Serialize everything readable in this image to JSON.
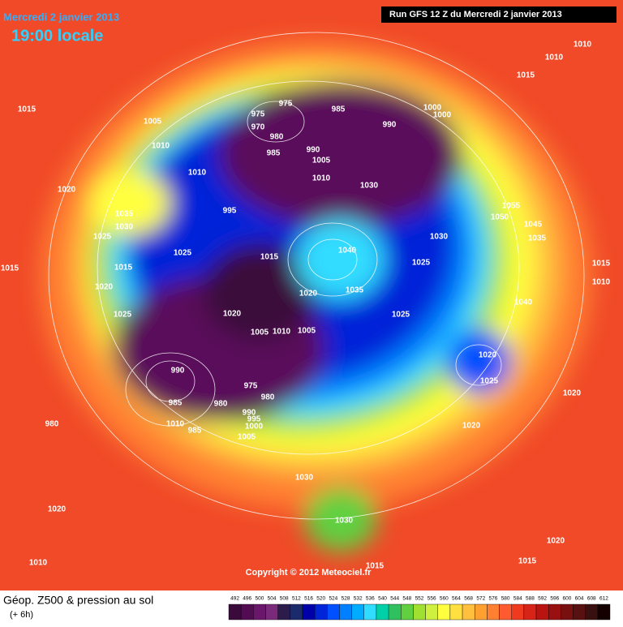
{
  "header": {
    "date": "Mercredi 2 janvier 2013",
    "time": "19:00 locale",
    "run": "Run GFS 12 Z du Mercredi 2 janvier 2013"
  },
  "footer": {
    "title": "Géop. Z500 & pression au sol",
    "subtitle": "(+ 6h)",
    "copyright": "Copyright © 2012 Meteociel.fr"
  },
  "legend": {
    "ticks": [
      492,
      496,
      500,
      504,
      508,
      512,
      516,
      520,
      524,
      528,
      532,
      536,
      540,
      544,
      548,
      552,
      556,
      560,
      564,
      568,
      572,
      576,
      580,
      584,
      588,
      592,
      596,
      600,
      604,
      608,
      612
    ],
    "colors": [
      "#3a0a3a",
      "#520c52",
      "#6a166a",
      "#7a2a7a",
      "#2c1c4c",
      "#1a2a6a",
      "#0000a8",
      "#0024d8",
      "#0050ff",
      "#0080ff",
      "#00acff",
      "#30dcff",
      "#00d0a8",
      "#30c060",
      "#60d040",
      "#a0e030",
      "#d0f040",
      "#ffff40",
      "#ffe040",
      "#ffc040",
      "#ffa030",
      "#ff8030",
      "#ff5a30",
      "#f03a20",
      "#d82418",
      "#b81410",
      "#981010",
      "#781010",
      "#581010",
      "#381010",
      "#140000"
    ]
  },
  "pressure_labels": [
    1015,
    1005,
    1010,
    1010,
    1020,
    1035,
    1030,
    1025,
    995,
    975,
    975,
    970,
    985,
    980,
    985,
    990,
    1005,
    1010,
    1030,
    990,
    1000,
    1000,
    1055,
    1050,
    1045,
    1035,
    1030,
    1025,
    1040,
    1035,
    1020,
    1015,
    1025,
    1015,
    1020,
    1025,
    1015,
    1015,
    1010,
    1040,
    1025,
    1020,
    1025,
    1020,
    1005,
    1010,
    1005,
    990,
    975,
    980,
    985,
    980,
    990,
    995,
    1000,
    1005,
    1010,
    985,
    980,
    1020,
    1030,
    1030,
    1020,
    1015,
    1020,
    1015,
    1010,
    1010,
    1010,
    1015,
    1020
  ]
}
